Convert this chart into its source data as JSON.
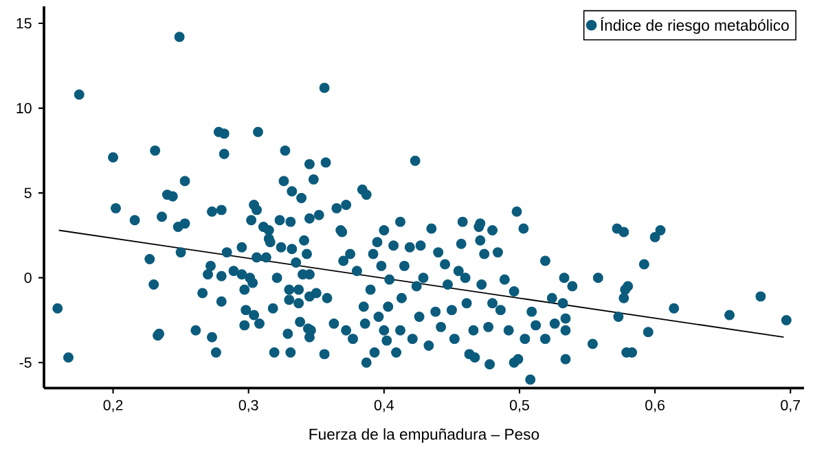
{
  "chart_data": {
    "type": "scatter",
    "xlabel": "Fuerza de la empuñadura – Peso",
    "xlim": [
      0.149,
      0.71
    ],
    "ylim": [
      -6.5,
      16
    ],
    "xticks": [
      {
        "value": 0.2,
        "label": "0,2"
      },
      {
        "value": 0.3,
        "label": "0,3"
      },
      {
        "value": 0.4,
        "label": "0,4"
      },
      {
        "value": 0.5,
        "label": "0,5"
      },
      {
        "value": 0.6,
        "label": "0,6"
      },
      {
        "value": 0.7,
        "label": "0,7"
      }
    ],
    "yticks": [
      -5,
      0,
      5,
      10,
      15
    ],
    "grid": false,
    "legend": "top right",
    "marker": "circle",
    "series": [
      {
        "name": "Índice de riesgo metabólico",
        "color": "#0b5b7c",
        "x": [
          0.175,
          0.249,
          0.356,
          0.2,
          0.231,
          0.278,
          0.282,
          0.307,
          0.282,
          0.327,
          0.345,
          0.357,
          0.423,
          0.253,
          0.326,
          0.348,
          0.202,
          0.216,
          0.236,
          0.24,
          0.244,
          0.248,
          0.253,
          0.273,
          0.28,
          0.302,
          0.304,
          0.306,
          0.311,
          0.315,
          0.323,
          0.331,
          0.332,
          0.339,
          0.345,
          0.352,
          0.365,
          0.372,
          0.384,
          0.387,
          0.368,
          0.4,
          0.412,
          0.498,
          0.435,
          0.458,
          0.471,
          0.48,
          0.503,
          0.572,
          0.604,
          0.159,
          0.167,
          0.227,
          0.23,
          0.233,
          0.234,
          0.25,
          0.261,
          0.266,
          0.273,
          0.276,
          0.272,
          0.27,
          0.28,
          0.28,
          0.284,
          0.289,
          0.295,
          0.295,
          0.297,
          0.298,
          0.297,
          0.303,
          0.301,
          0.304,
          0.308,
          0.306,
          0.315,
          0.316,
          0.313,
          0.318,
          0.319,
          0.321,
          0.324,
          0.33,
          0.33,
          0.331,
          0.329,
          0.332,
          0.335,
          0.337,
          0.337,
          0.338,
          0.341,
          0.343,
          0.345,
          0.345,
          0.345,
          0.344,
          0.34,
          0.369,
          0.356,
          0.35,
          0.346,
          0.358,
          0.363,
          0.37,
          0.372,
          0.375,
          0.377,
          0.38,
          0.385,
          0.386,
          0.387,
          0.39,
          0.392,
          0.393,
          0.395,
          0.396,
          0.398,
          0.4,
          0.402,
          0.404,
          0.403,
          0.407,
          0.409,
          0.412,
          0.413,
          0.415,
          0.419,
          0.421,
          0.424,
          0.426,
          0.427,
          0.429,
          0.433,
          0.438,
          0.44,
          0.442,
          0.445,
          0.447,
          0.45,
          0.452,
          0.455,
          0.457,
          0.46,
          0.461,
          0.463,
          0.466,
          0.467,
          0.47,
          0.471,
          0.472,
          0.474,
          0.477,
          0.478,
          0.48,
          0.484,
          0.486,
          0.489,
          0.492,
          0.496,
          0.496,
          0.499,
          0.508,
          0.504,
          0.509,
          0.512,
          0.519,
          0.519,
          0.524,
          0.526,
          0.533,
          0.534,
          0.532,
          0.577,
          0.6,
          0.592,
          0.558,
          0.539,
          0.58,
          0.578,
          0.577,
          0.573,
          0.614,
          0.595,
          0.554,
          0.579,
          0.583,
          0.655,
          0.678,
          0.697,
          0.534,
          0.534
        ],
        "values": [
          10.8,
          14.2,
          11.2,
          7.1,
          7.5,
          8.6,
          8.5,
          8.6,
          7.3,
          7.5,
          6.7,
          6.8,
          6.9,
          5.7,
          5.7,
          5.8,
          4.1,
          3.4,
          3.6,
          4.9,
          4.8,
          3.0,
          3.2,
          3.9,
          4.0,
          3.4,
          4.3,
          4.0,
          3.0,
          2.8,
          3.4,
          3.3,
          5.1,
          4.7,
          3.5,
          3.7,
          4.1,
          4.3,
          5.2,
          4.9,
          2.8,
          2.8,
          3.3,
          3.9,
          2.9,
          3.3,
          3.2,
          2.8,
          2.9,
          2.9,
          2.8,
          -1.8,
          -4.7,
          1.1,
          -0.4,
          -3.4,
          -3.3,
          1.5,
          -3.1,
          -0.9,
          -3.5,
          -4.4,
          0.7,
          0.2,
          -1.4,
          0.1,
          1.5,
          0.4,
          0.2,
          1.8,
          -0.7,
          -1.9,
          -2.8,
          -0.3,
          0.0,
          -2.2,
          -2.7,
          1.2,
          2.3,
          2.1,
          1.2,
          -1.8,
          -4.4,
          0.0,
          1.8,
          -0.7,
          -1.3,
          -4.4,
          -3.3,
          1.7,
          0.9,
          -0.7,
          -1.5,
          -2.6,
          2.2,
          1.4,
          0.2,
          -1.1,
          -3.5,
          -3.0,
          0.2,
          2.7,
          -4.5,
          -0.9,
          -3.1,
          -1.2,
          -2.7,
          1.0,
          -3.1,
          1.4,
          -3.6,
          0.4,
          -1.7,
          -2.7,
          -5.0,
          -0.7,
          1.4,
          -4.4,
          2.1,
          -2.3,
          0.7,
          -3.1,
          -3.7,
          -0.1,
          -1.7,
          1.9,
          -4.4,
          -3.1,
          -1.2,
          0.7,
          1.8,
          -3.6,
          -0.5,
          -2.3,
          1.9,
          0.0,
          -4.0,
          -2.0,
          1.5,
          -2.9,
          0.8,
          -0.4,
          -1.9,
          -3.6,
          0.4,
          2.0,
          0.0,
          -1.5,
          -4.5,
          -3.1,
          -4.7,
          3.0,
          2.2,
          -0.4,
          1.4,
          -2.9,
          -5.1,
          -1.5,
          1.5,
          -1.9,
          -0.1,
          -3.1,
          -0.8,
          -5.0,
          -4.8,
          -6.0,
          -3.6,
          -2.0,
          -2.8,
          1.0,
          -3.6,
          -1.2,
          -2.7,
          0.0,
          -4.8,
          -1.5,
          2.7,
          2.4,
          0.8,
          0.0,
          -0.5,
          -0.5,
          -0.7,
          -1.2,
          -2.3,
          -1.8,
          -3.2,
          -3.9,
          -4.4,
          -4.4,
          -2.2,
          -1.1,
          -2.5,
          -3.1,
          -2.4
        ]
      },
      {
        "type": "line",
        "marker": "none",
        "color": "#000000",
        "x": [
          0.16,
          0.695
        ],
        "values": [
          2.8,
          -3.5
        ]
      }
    ]
  }
}
